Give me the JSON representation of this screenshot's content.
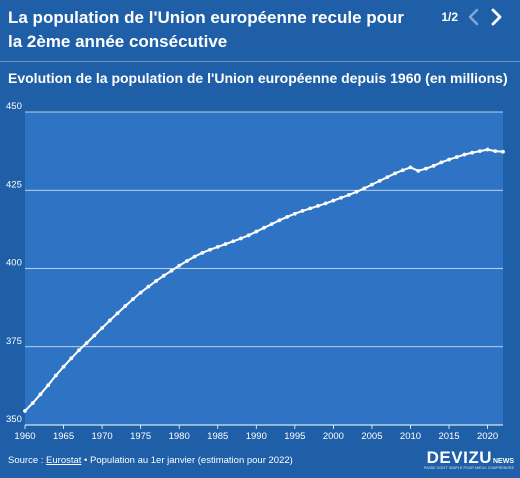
{
  "header": {
    "headline": "La population de l'Union européenne recule pour la 2ème année consécutive",
    "pager": "1/2",
    "prev_icon": "chevron-left-icon",
    "next_icon": "chevron-right-icon"
  },
  "chart_title": "Evolution de la population de l'Union européenne depuis 1960 (en millions)",
  "footer": {
    "source_prefix": "Source : ",
    "source_link": "Eurostat",
    "note": " • Population au 1er janvier (estimation pour 2022)"
  },
  "logo": {
    "name": "DEVIZU",
    "suffix": "NEWS",
    "tagline": "PASSE DON'T SIMPLE POUR MIEUX COMPRENDRE"
  },
  "colors": {
    "background": "#1f5fa8",
    "plot_area": "#2f73c4",
    "line": "#ffffff",
    "grid": "#ffffff"
  },
  "chart_data": {
    "type": "line",
    "title": "Evolution de la population de l'Union européenne depuis 1960 (en millions)",
    "xlabel": "",
    "ylabel": "",
    "xlim": [
      1960,
      2022
    ],
    "ylim": [
      350,
      450
    ],
    "grid": true,
    "y_ticks": [
      "350",
      "375",
      "400",
      "425",
      "450"
    ],
    "x_ticks": [
      "1960",
      "1965",
      "1970",
      "1975",
      "1980",
      "1985",
      "1990",
      "1995",
      "2000",
      "2005",
      "2010",
      "2015",
      "2020"
    ],
    "series": [
      {
        "x": [
          1960,
          1961,
          1962,
          1963,
          1964,
          1965,
          1966,
          1967,
          1968,
          1969,
          1970,
          1971,
          1972,
          1973,
          1974,
          1975,
          1976,
          1977,
          1978,
          1979,
          1980,
          1981,
          1982,
          1983,
          1984,
          1985,
          1986,
          1987,
          1988,
          1989,
          1990,
          1991,
          1992,
          1993,
          1994,
          1995,
          1996,
          1997,
          1998,
          1999,
          2000,
          2001,
          2002,
          2003,
          2004,
          2005,
          2006,
          2007,
          2008,
          2009,
          2010,
          2011,
          2012,
          2013,
          2014,
          2015,
          2016,
          2017,
          2018,
          2019,
          2020,
          2021,
          2022
        ],
        "values": [
          354.5,
          357.0,
          359.8,
          362.7,
          365.8,
          368.6,
          371.3,
          373.9,
          376.2,
          378.6,
          381.0,
          383.4,
          385.7,
          388.0,
          390.2,
          392.3,
          394.2,
          396.0,
          397.7,
          399.3,
          400.9,
          402.4,
          403.8,
          405.0,
          406.0,
          406.9,
          407.8,
          408.7,
          409.6,
          410.6,
          411.8,
          413.0,
          414.2,
          415.4,
          416.5,
          417.5,
          418.4,
          419.2,
          420.0,
          420.8,
          421.7,
          422.6,
          423.5,
          424.5,
          425.6,
          426.8,
          428.0,
          429.2,
          430.4,
          431.4,
          432.3,
          431.2,
          431.9,
          432.8,
          433.9,
          434.8,
          435.6,
          436.4,
          437.0,
          437.5,
          438.0,
          437.5,
          437.3
        ]
      }
    ]
  }
}
